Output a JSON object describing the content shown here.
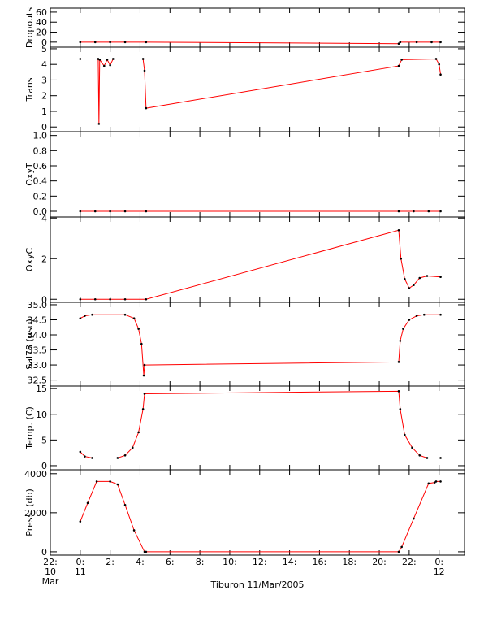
{
  "chart_data": [
    {
      "type": "line",
      "ylabel": "Dropouts",
      "line_color": "#ff0000",
      "marker_color": "#000000",
      "x": [
        0,
        1,
        2,
        3,
        4.4,
        21.3,
        21.4,
        22.5,
        23.5,
        24.1
      ],
      "values": [
        0,
        0,
        0,
        0,
        0,
        -3,
        0,
        0,
        0,
        0
      ],
      "ylim": [
        -10,
        68
      ],
      "yticks": [
        0,
        20,
        40,
        60
      ]
    },
    {
      "type": "line",
      "ylabel": "Trans",
      "line_color": "#ff0000",
      "marker_color": "#000000",
      "x": [
        0,
        1.2,
        1.25,
        1.3,
        1.6,
        1.8,
        2.0,
        2.2,
        4.2,
        4.3,
        4.4,
        21.3,
        21.5,
        23.8,
        24.0,
        24.1
      ],
      "values": [
        4.35,
        4.35,
        0.2,
        4.3,
        3.9,
        4.3,
        3.95,
        4.35,
        4.35,
        3.6,
        1.2,
        3.9,
        4.3,
        4.35,
        4.0,
        3.35
      ],
      "ylim": [
        -0.3,
        5.1
      ],
      "yticks": [
        0,
        1,
        2,
        3,
        4,
        5
      ]
    },
    {
      "type": "line",
      "ylabel": "OxyT",
      "line_color": "#ff0000",
      "marker_color": "#000000",
      "x": [
        0,
        1,
        2,
        3,
        4.4,
        21.3,
        22.3,
        23.3,
        24.1
      ],
      "values": [
        0,
        0,
        0,
        0,
        0,
        0,
        0,
        0,
        0
      ],
      "ylim": [
        -0.075,
        1.05
      ],
      "yticks": [
        {
          "value": 0,
          "label": "0.0"
        },
        0.2,
        0.4,
        0.6,
        0.8,
        {
          "value": 1,
          "label": "1.0"
        }
      ]
    },
    {
      "type": "line",
      "ylabel": "OxyC",
      "line_color": "#ff0000",
      "marker_color": "#000000",
      "x": [
        0,
        1,
        2,
        3,
        4.4,
        21.3,
        21.45,
        21.7,
        22.0,
        22.3,
        22.7,
        23.2,
        24.1
      ],
      "values": [
        0,
        0,
        0,
        0,
        0,
        3.4,
        2.0,
        1.0,
        0.55,
        0.7,
        1.05,
        1.15,
        1.1
      ],
      "ylim": [
        -0.15,
        4.05
      ],
      "yticks": [
        0,
        2,
        4
      ]
    },
    {
      "type": "line",
      "ylabel": "Sal78 (psu)",
      "line_color": "#ff0000",
      "marker_color": "#000000",
      "x": [
        0,
        0.3,
        0.8,
        3.0,
        3.6,
        3.9,
        4.1,
        4.25,
        4.3,
        21.3,
        21.4,
        21.6,
        22.0,
        22.5,
        23.0,
        24.1
      ],
      "values": [
        34.55,
        34.63,
        34.67,
        34.67,
        34.55,
        34.2,
        33.7,
        32.65,
        33.0,
        33.1,
        33.8,
        34.2,
        34.5,
        34.63,
        34.67,
        34.67
      ],
      "ylim": [
        32.3,
        35.08
      ],
      "yticks": [
        32.5,
        {
          "value": 33,
          "label": "33.0"
        },
        33.5,
        {
          "value": 34,
          "label": "34.0"
        },
        34.5,
        {
          "value": 35,
          "label": "35.0"
        }
      ]
    },
    {
      "type": "line",
      "ylabel": "Temp. (C)",
      "line_color": "#ff0000",
      "marker_color": "#000000",
      "x": [
        0,
        0.3,
        0.8,
        2.5,
        3.0,
        3.5,
        3.9,
        4.2,
        4.3,
        21.3,
        21.4,
        21.7,
        22.2,
        22.7,
        23.2,
        24.1
      ],
      "values": [
        2.7,
        1.8,
        1.5,
        1.5,
        2.0,
        3.5,
        6.5,
        11,
        14,
        14.5,
        11,
        6,
        3.5,
        2.0,
        1.5,
        1.5
      ],
      "ylim": [
        -0.8,
        15.5
      ],
      "yticks": [
        0,
        5,
        10,
        15
      ]
    },
    {
      "type": "line",
      "ylabel": "Press. (db)",
      "line_color": "#ff0000",
      "marker_color": "#000000",
      "x": [
        0,
        0.5,
        1.1,
        2.0,
        2.5,
        3.0,
        3.6,
        4.3,
        4.4,
        21.3,
        21.5,
        22.3,
        23.3,
        23.7,
        23.8,
        24.1
      ],
      "values": [
        1550,
        2500,
        3600,
        3600,
        3450,
        2400,
        1100,
        0,
        0,
        0,
        250,
        1700,
        3500,
        3550,
        3600,
        3600
      ],
      "ylim": [
        -170,
        4200
      ],
      "yticks": [
        0,
        2000,
        4000
      ],
      "xlim": [
        -2,
        25.7
      ],
      "xticks": [
        {
          "value": -2,
          "label": "22:\n10\nMar"
        },
        {
          "value": 0,
          "label": "0:\n11"
        },
        {
          "value": 2,
          "label": "2:"
        },
        {
          "value": 4,
          "label": "4:"
        },
        {
          "value": 6,
          "label": "6:"
        },
        {
          "value": 8,
          "label": "8:"
        },
        {
          "value": 10,
          "label": "10:"
        },
        {
          "value": 12,
          "label": "12:"
        },
        {
          "value": 14,
          "label": "14:"
        },
        {
          "value": 16,
          "label": "16:"
        },
        {
          "value": 18,
          "label": "18:"
        },
        {
          "value": 20,
          "label": "20:"
        },
        {
          "value": 22,
          "label": "22:"
        },
        {
          "value": 24,
          "label": "0:\n12"
        }
      ],
      "xlabel": "Tiburon 11/Mar/2005"
    }
  ]
}
